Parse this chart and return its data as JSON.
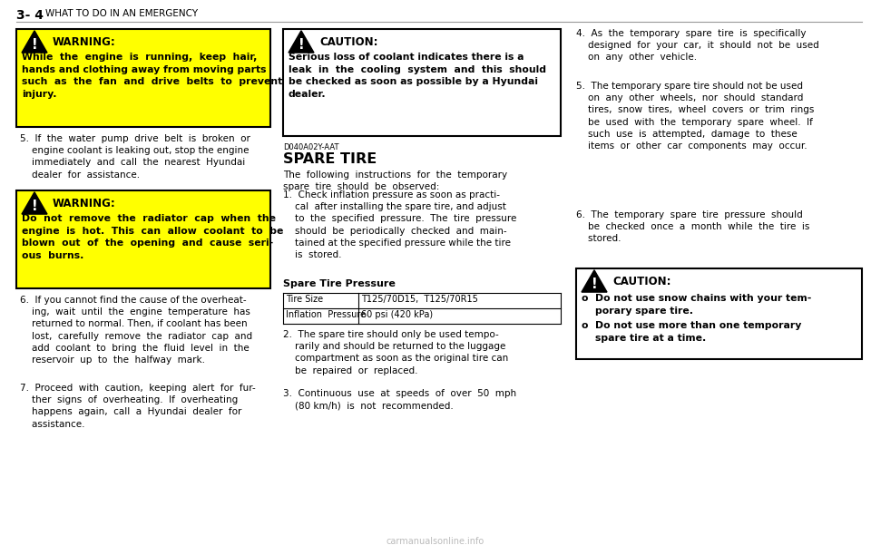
{
  "page_title_bold": "3- 4",
  "page_title_normal": "WHAT TO DO IN AN EMERGENCY",
  "bg_color": "#ffffff",
  "warning_bg": "#ffff00",
  "warning_border": "#000000",
  "caution_border": "#000000",
  "caution_bg": "#ffffff",
  "watermark": "carmanualsonline.info",
  "col1_warning1_title": "WARNING:",
  "col1_warning1_body": "While  the  engine  is  running,  keep  hair,\nhands and clothing away from moving parts\nsuch  as  the  fan  and  drive  belts  to  prevent\ninjury.",
  "col1_item5": "5.  If  the  water  pump  drive  belt  is  broken  or\n    engine coolant is leaking out, stop the engine\n    immediately  and  call  the  nearest  Hyundai\n    dealer  for  assistance.",
  "col1_warning2_title": "WARNING:",
  "col1_warning2_body": "Do  not  remove  the  radiator  cap  when  the\nengine  is  hot.  This  can  allow  coolant  to  be\nblown  out  of  the  opening  and  cause  seri-\nous  burns.",
  "col1_item6": "6.  If you cannot find the cause of the overheat-\n    ing,  wait  until  the  engine  temperature  has\n    returned to normal. Then, if coolant has been\n    lost,  carefully  remove  the  radiator  cap  and\n    add  coolant  to  bring  the  fluid  level  in  the\n    reservoir  up  to  the  halfway  mark.",
  "col1_item7": "7.  Proceed  with  caution,  keeping  alert  for  fur-\n    ther  signs  of  overheating.  If  overheating\n    happens  again,  call  a  Hyundai  dealer  for\n    assistance.",
  "col2_caution_title": "CAUTION:",
  "col2_caution_body": "Serious loss of coolant indicates there is a\nleak  in  the  cooling  system  and  this  should\nbe checked as soon as possible by a Hyundai\ndealer.",
  "col2_code": "D040A02Y-AAT",
  "col2_spare_title": "SPARE TIRE",
  "col2_intro": "The  following  instructions  for  the  temporary\nspare  tire  should  be  observed:",
  "col2_item1": "1.  Check inflation pressure as soon as practi-\n    cal  after installing the spare tire, and adjust\n    to  the  specified  pressure.  The  tire  pressure\n    should  be  periodically  checked  and  main-\n    tained at the specified pressure while the tire\n    is  stored.",
  "col2_spare_pressure_title": "Spare Tire Pressure",
  "col2_table_row1_c1": "Tire Size",
  "col2_table_row1_c2": "T125/70D15,  T125/70R15",
  "col2_table_row2_c1": "Inflation  Pressure",
  "col2_table_row2_c2": "60 psi (420 kPa)",
  "col2_item2": "2.  The spare tire should only be used tempo-\n    rarily and should be returned to the luggage\n    compartment as soon as the original tire can\n    be  repaired  or  replaced.",
  "col2_item3": "3.  Continuous  use  at  speeds  of  over  50  mph\n    (80 km/h)  is  not  recommended.",
  "col3_item4": "4.  As  the  temporary  spare  tire  is  specifically\n    designed  for  your  car,  it  should  not  be  used\n    on  any  other  vehicle.",
  "col3_item5": "5.  The temporary spare tire should not be used\n    on  any  other  wheels,  nor  should  standard\n    tires,  snow  tires,  wheel  covers  or  trim  rings\n    be  used  with  the  temporary  spare  wheel.  If\n    such  use  is  attempted,  damage  to  these\n    items  or  other  car  components  may  occur.",
  "col3_item6": "6.  The  temporary  spare  tire  pressure  should\n    be  checked  once  a  month  while  the  tire  is\n    stored.",
  "col3_caution_title": "CAUTION:",
  "col3_caution_body1": "o  Do not use snow chains with your tem-\n    porary spare tire.",
  "col3_caution_body2": "o  Do not use more than one temporary\n    spare tire at a time."
}
